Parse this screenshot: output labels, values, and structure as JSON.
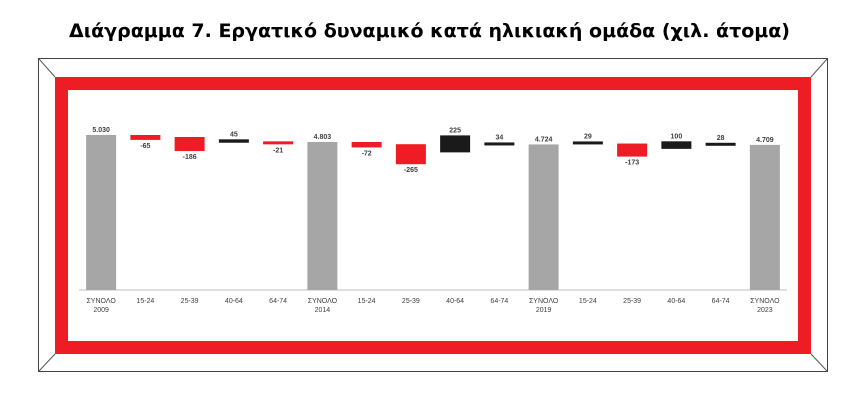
{
  "title": "Διάγραμμα 7. Εργατικό δυναμικό κατά ηλικιακή ομάδα (χιλ. άτομα)",
  "colors": {
    "total": "#a6a6a6",
    "decrease": "#ee1c25",
    "increase": "#1a1a1a",
    "frame_red": "#ee1c25"
  },
  "chart_data": {
    "type": "bar",
    "subtype": "waterfall",
    "title": "Διάγραμμα 7. Εργατικό δυναμικό κατά ηλικιακή ομάδα (χιλ. άτομα)",
    "xlabel": "",
    "ylabel": "",
    "grid": false,
    "legend": "none",
    "categories": [
      [
        "ΣΥΝΟΛΟ",
        "2009"
      ],
      [
        "15-24"
      ],
      [
        "25-39"
      ],
      [
        "40-64"
      ],
      [
        "64-74"
      ],
      [
        "ΣΥΝΟΛΟ",
        "2014"
      ],
      [
        "15-24"
      ],
      [
        "25-39"
      ],
      [
        "40-64"
      ],
      [
        "64-74"
      ],
      [
        "ΣΥΝΟΛΟ",
        "2019"
      ],
      [
        "15-24"
      ],
      [
        "25-39"
      ],
      [
        "40-64"
      ],
      [
        "64-74"
      ],
      [
        "ΣΥΝΟΛΟ",
        "2023"
      ]
    ],
    "kinds": [
      "total",
      "change",
      "change",
      "change",
      "change",
      "total",
      "change",
      "change",
      "change",
      "change",
      "total",
      "change",
      "change",
      "change",
      "change",
      "total"
    ],
    "values": [
      5030,
      -65,
      -186,
      45,
      -21,
      4803,
      -72,
      -265,
      225,
      34,
      4724,
      29,
      -173,
      100,
      28,
      4709
    ],
    "labels": [
      "5.030",
      "-65",
      "-186",
      "45",
      "-21",
      "4.803",
      "-72",
      "-265",
      "225",
      "34",
      "4.724",
      "29",
      "-173",
      "100",
      "28",
      "4.709"
    ]
  }
}
